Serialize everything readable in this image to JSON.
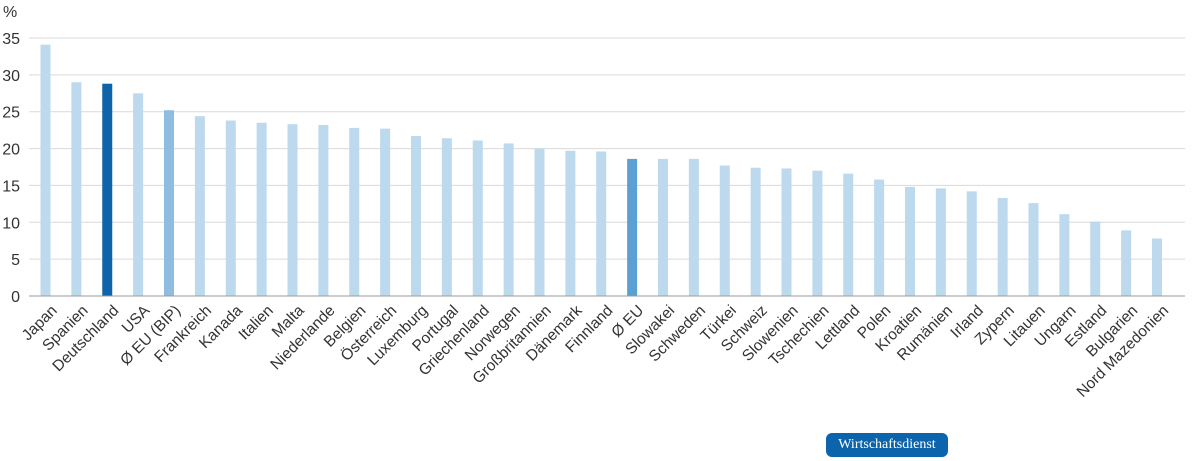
{
  "chart_data": {
    "type": "bar",
    "y_unit": "%",
    "ylim": [
      0,
      35
    ],
    "y_ticks": [
      "0",
      "5",
      "10",
      "15",
      "20",
      "25",
      "30",
      "35"
    ],
    "grid": true,
    "categories": [
      "Japan",
      "Spanien",
      "Deutschland",
      "USA",
      "Ø EU (BIP)",
      "Frankreich",
      "Kanada",
      "Italien",
      "Malta",
      "Niederlande",
      "Belgien",
      "Österreich",
      "Luxemburg",
      "Portugal",
      "Griechenland",
      "Norwegen",
      "Großbritannien",
      "Dänemark",
      "Finnland",
      "Ø EU",
      "Slowakei",
      "Schweden",
      "Türkei",
      "Schweiz",
      "Slowenien",
      "Tschechien",
      "Lettland",
      "Polen",
      "Kroatien",
      "Rumänien",
      "Irland",
      "Zypern",
      "Litauen",
      "Ungarn",
      "Estland",
      "Bulgarien",
      "Nord Mazedonien"
    ],
    "values": [
      34.1,
      29.0,
      28.8,
      27.5,
      25.2,
      24.4,
      23.8,
      23.5,
      23.3,
      23.2,
      22.8,
      22.7,
      21.7,
      21.4,
      21.1,
      20.7,
      20.0,
      19.7,
      19.6,
      18.6,
      18.6,
      18.6,
      17.7,
      17.4,
      17.3,
      17.0,
      16.6,
      15.8,
      14.8,
      14.6,
      14.2,
      13.3,
      12.6,
      11.1,
      10.1,
      8.9,
      7.8
    ],
    "colors": {
      "default": "#bcd9ee",
      "Deutschland": "#0d64aa",
      "Ø EU (BIP)": "#8fbde0",
      "Ø EU": "#5b9fd3"
    }
  },
  "badge": {
    "text": "Wirtschaftsdienst",
    "color": "#0b64ac"
  }
}
